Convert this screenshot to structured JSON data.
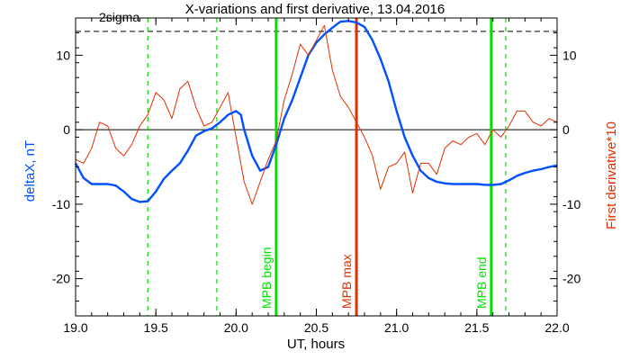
{
  "chart_data": {
    "type": "line",
    "title": "X-variations and first derivative, 13.04.2016",
    "xlabel": "UT, hours",
    "ylabel_left": "deltaX, nT",
    "ylabel_right": "First derivative*10",
    "xlim": [
      19.0,
      22.0
    ],
    "ylim": [
      -25,
      15
    ],
    "x_ticks": [
      "19.0",
      "19.5",
      "20.0",
      "20.5",
      "21.0",
      "21.5",
      "22.0"
    ],
    "y_ticks_left": [
      "-20",
      "-10",
      "0",
      "10"
    ],
    "y_ticks_right": [
      "-20",
      "-10",
      "0",
      "10"
    ],
    "sigma_label": "2sigma",
    "two_sigma_level": 13.2,
    "grid": false,
    "colors": {
      "deltaX": "#0050ff",
      "derivative": "#e03000",
      "mpb_boundary": "#00e000",
      "mpb_max": "#e03000"
    },
    "series": [
      {
        "key": "deltaX",
        "axis": "left",
        "x": [
          19.0,
          19.05,
          19.1,
          19.15,
          19.2,
          19.25,
          19.3,
          19.35,
          19.4,
          19.45,
          19.5,
          19.55,
          19.6,
          19.65,
          19.7,
          19.75,
          19.8,
          19.85,
          19.9,
          19.95,
          20.0,
          20.03,
          20.05,
          20.1,
          20.15,
          20.2,
          20.25,
          20.3,
          20.35,
          20.4,
          20.45,
          20.5,
          20.55,
          20.6,
          20.65,
          20.7,
          20.75,
          20.8,
          20.85,
          20.9,
          20.95,
          21.0,
          21.05,
          21.1,
          21.15,
          21.2,
          21.25,
          21.3,
          21.35,
          21.4,
          21.45,
          21.5,
          21.55,
          21.6,
          21.65,
          21.7,
          21.75,
          21.8,
          21.85,
          21.9,
          21.95,
          22.0
        ],
        "y": [
          -4.5,
          -6.5,
          -7.3,
          -7.3,
          -7.3,
          -7.5,
          -8.3,
          -9.3,
          -9.7,
          -9.6,
          -8.3,
          -6.6,
          -5.5,
          -4.5,
          -2.8,
          -0.8,
          -0.2,
          0.2,
          1.0,
          2.0,
          2.5,
          2.0,
          0.0,
          -3.5,
          -5.5,
          -5.0,
          -2.0,
          1.5,
          4.0,
          7.0,
          10.0,
          11.7,
          12.8,
          13.7,
          14.5,
          14.6,
          14.4,
          13.8,
          12.0,
          9.5,
          6.5,
          2.5,
          -1.0,
          -3.5,
          -5.5,
          -6.5,
          -7.0,
          -7.2,
          -7.3,
          -7.3,
          -7.3,
          -7.3,
          -7.4,
          -7.4,
          -7.3,
          -6.8,
          -6.2,
          -5.8,
          -5.5,
          -5.3,
          -5.0,
          -4.8
        ]
      },
      {
        "key": "derivative",
        "axis": "right",
        "x": [
          19.0,
          19.05,
          19.1,
          19.15,
          19.2,
          19.25,
          19.3,
          19.35,
          19.4,
          19.45,
          19.5,
          19.55,
          19.6,
          19.65,
          19.7,
          19.75,
          19.8,
          19.85,
          19.9,
          19.95,
          20.0,
          20.05,
          20.1,
          20.15,
          20.2,
          20.25,
          20.3,
          20.35,
          20.4,
          20.45,
          20.5,
          20.55,
          20.6,
          20.65,
          20.7,
          20.75,
          20.8,
          20.85,
          20.9,
          20.95,
          21.0,
          21.05,
          21.1,
          21.15,
          21.2,
          21.25,
          21.3,
          21.35,
          21.4,
          21.45,
          21.5,
          21.55,
          21.6,
          21.65,
          21.7,
          21.75,
          21.8,
          21.85,
          21.9,
          21.95,
          22.0
        ],
        "y": [
          -4.0,
          -4.5,
          -2.5,
          1.0,
          0.5,
          -2.5,
          -3.5,
          -2.0,
          0.5,
          2.0,
          5.0,
          4.0,
          1.5,
          5.5,
          6.5,
          3.0,
          0.5,
          1.0,
          3.0,
          5.0,
          -1.0,
          -7.0,
          -10.0,
          -7.0,
          -4.0,
          -1.5,
          4.0,
          7.5,
          11.5,
          10.0,
          12.0,
          14.0,
          8.0,
          4.5,
          3.0,
          1.0,
          -1.0,
          -3.5,
          -8.0,
          -5.0,
          -4.5,
          -3.0,
          -8.5,
          -4.5,
          -4.5,
          -6.0,
          -2.5,
          -1.5,
          -2.0,
          -1.0,
          -0.5,
          -2.0,
          0.0,
          -1.0,
          0.5,
          2.5,
          2.5,
          1.0,
          0.5,
          1.5,
          1.0
        ]
      }
    ],
    "vertical_lines": [
      {
        "x": 19.45,
        "style": "dashed",
        "color": "#00e000"
      },
      {
        "x": 19.88,
        "style": "dashed",
        "color": "#00e000"
      },
      {
        "x": 20.25,
        "style": "solid",
        "color": "#00e000",
        "label": "MPB begin"
      },
      {
        "x": 20.75,
        "style": "solid",
        "color": "#e03000",
        "label": "MPB max"
      },
      {
        "x": 21.59,
        "style": "solid",
        "color": "#00e000",
        "label": "MPB end"
      },
      {
        "x": 21.68,
        "style": "dashed",
        "color": "#00e000"
      }
    ]
  }
}
